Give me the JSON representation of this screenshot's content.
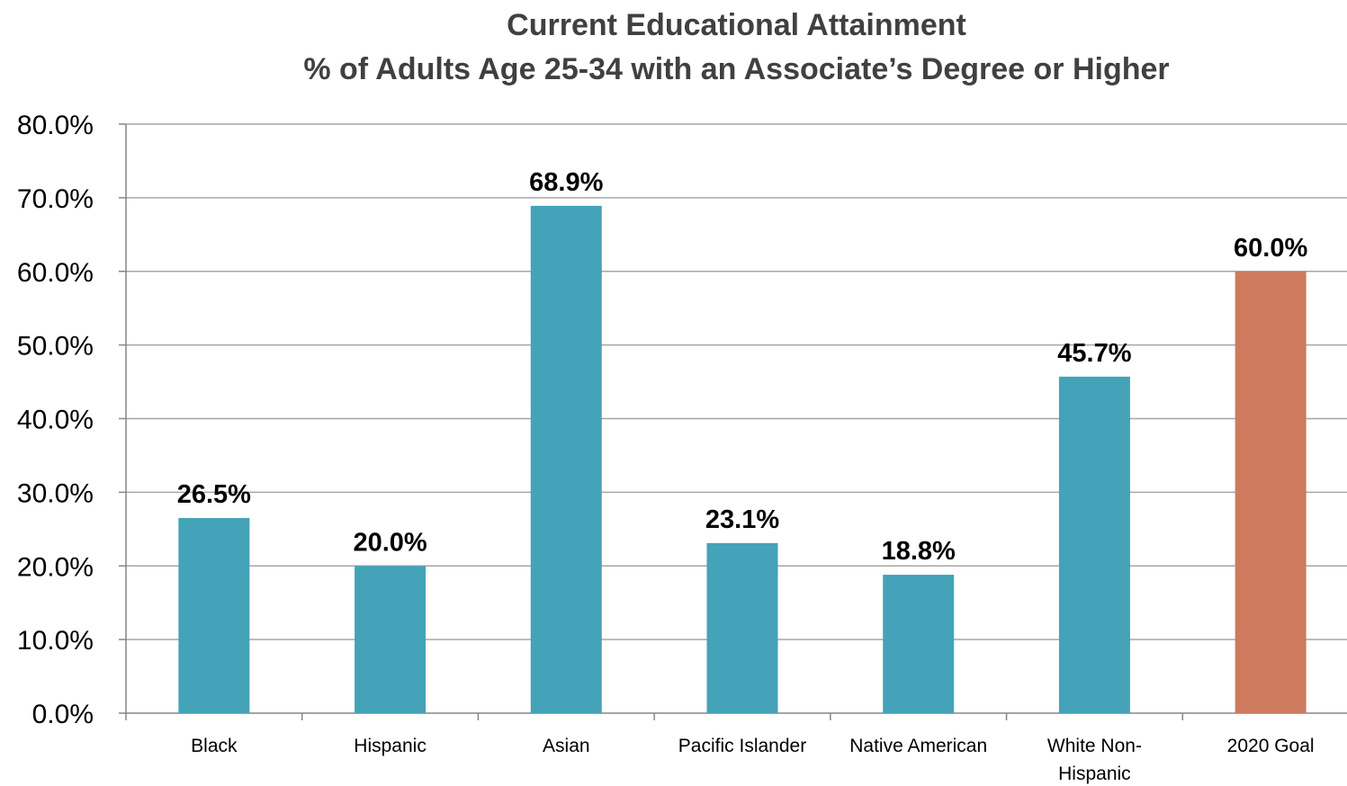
{
  "chart_data": {
    "type": "bar",
    "title": "Current Educational Attainment",
    "subtitle": "% of Adults Age 25-34 with an Associate’s Degree or Higher",
    "categories": [
      "Black",
      "Hispanic",
      "Asian",
      "Pacific Islander",
      "Native American",
      "White Non-Hispanic",
      "2020 Goal"
    ],
    "category_label_lines": [
      [
        "Black"
      ],
      [
        "Hispanic"
      ],
      [
        "Asian"
      ],
      [
        "Pacific Islander"
      ],
      [
        "Native American"
      ],
      [
        "White Non-",
        "Hispanic"
      ],
      [
        "2020 Goal"
      ]
    ],
    "values": [
      26.5,
      20.0,
      68.9,
      23.1,
      18.8,
      45.7,
      60.0
    ],
    "data_labels": [
      "26.5%",
      "20.0%",
      "68.9%",
      "23.1%",
      "18.8%",
      "45.7%",
      "60.0%"
    ],
    "ylim": [
      0,
      80
    ],
    "yticks": [
      0,
      10,
      20,
      30,
      40,
      50,
      60,
      70,
      80
    ],
    "ytick_labels": [
      "0.0%",
      "10.0%",
      "20.0%",
      "30.0%",
      "40.0%",
      "50.0%",
      "60.0%",
      "70.0%",
      "80.0%"
    ],
    "xlabel": "",
    "ylabel": "",
    "grid": true,
    "legend": "none",
    "bar_colors": [
      "#44A3B8",
      "#44A3B8",
      "#44A3B8",
      "#44A3B8",
      "#44A3B8",
      "#44A3B8",
      "#CE7A5E"
    ],
    "gridline_color": "#A6A6A6"
  }
}
